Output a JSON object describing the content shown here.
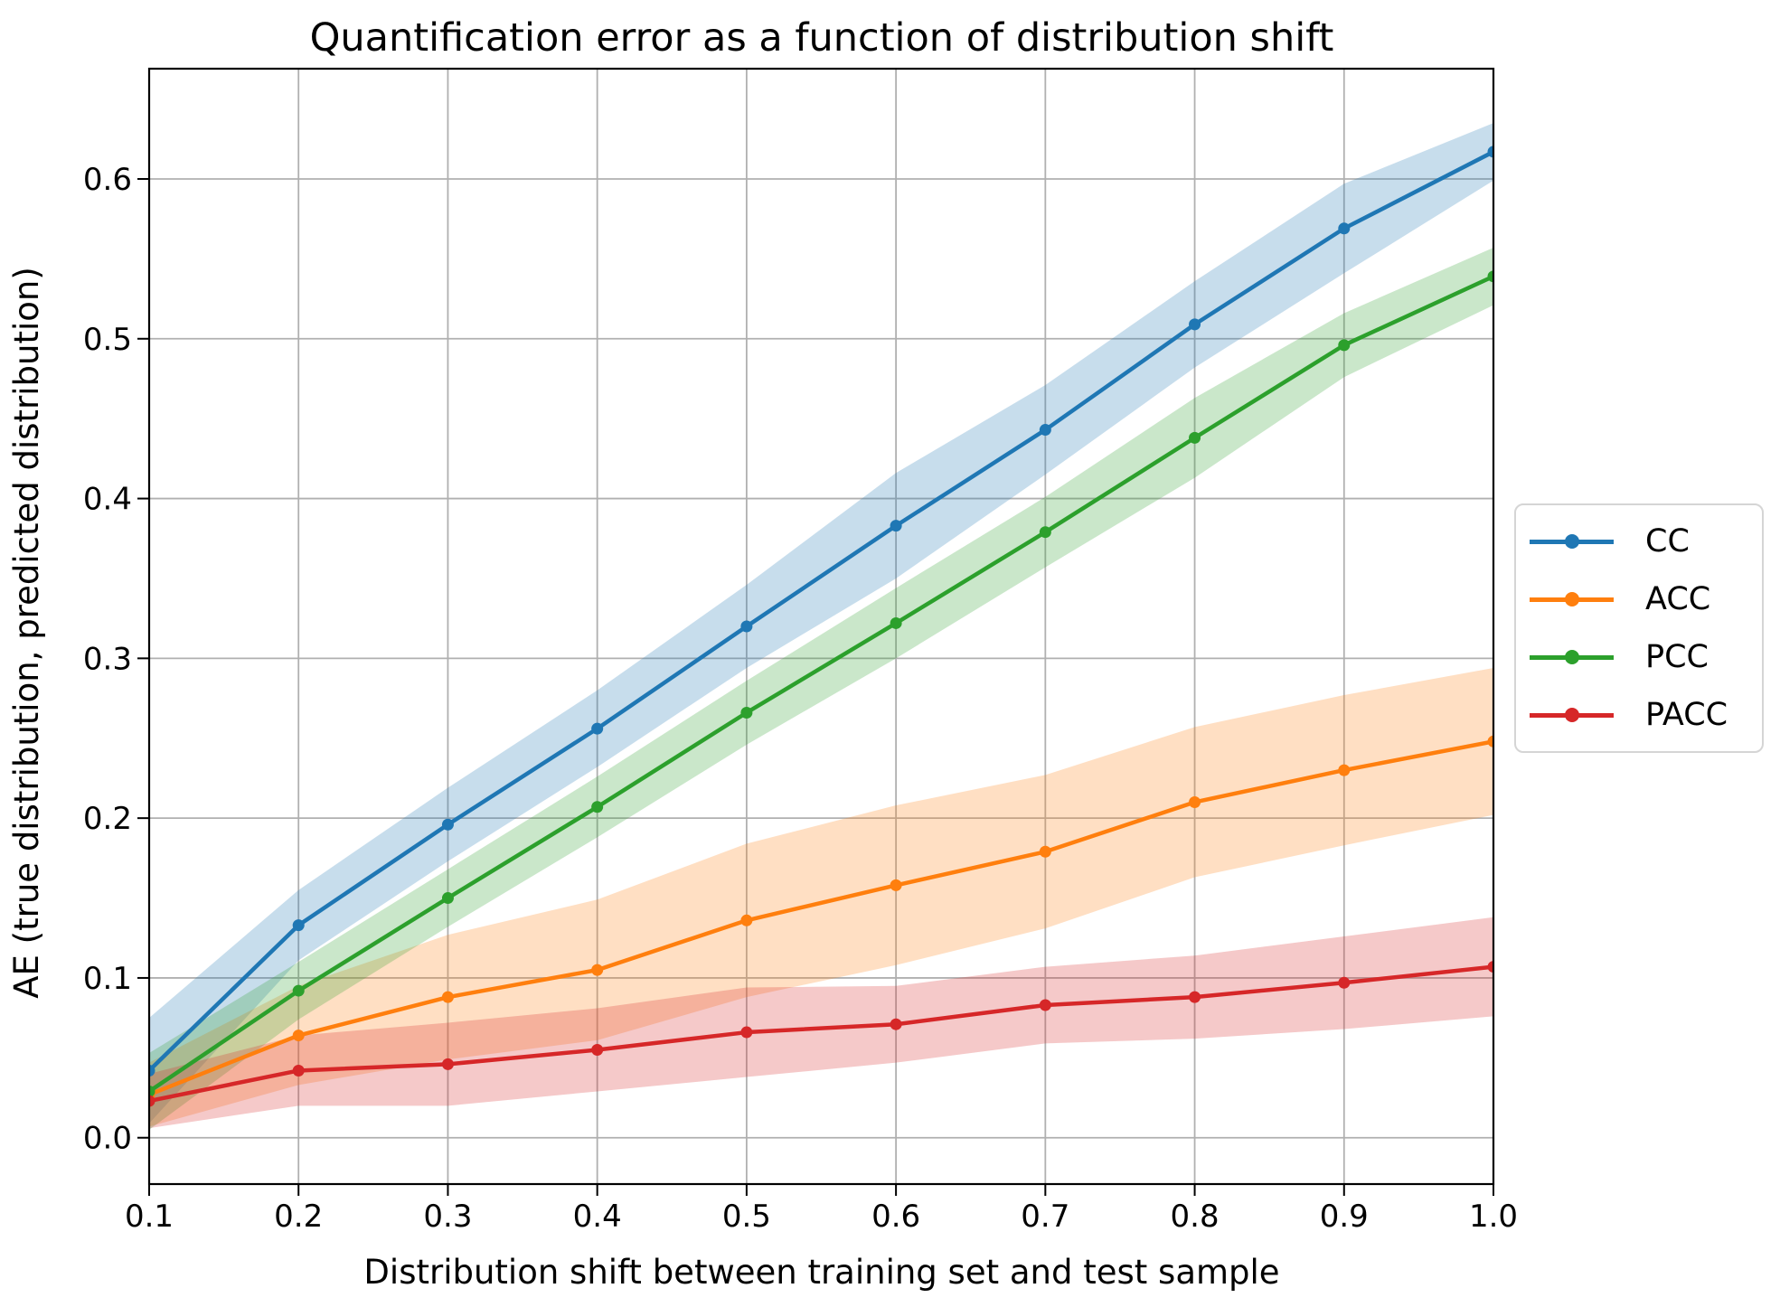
{
  "title": "Quantification error as a function of distribution shift",
  "xlabel": "Distribution shift between training set and test sample",
  "ylabel": "AE (true distribution, predicted distribution)",
  "colors": {
    "grid": "#b0b0b0",
    "spine": "#000000",
    "legend_border": "#d5d5d5",
    "background": "#ffffff"
  },
  "chart_data": {
    "type": "line",
    "title": "Quantification error as a function of distribution shift",
    "xlabel": "Distribution shift between training set and test sample",
    "ylabel": "AE (true distribution, predicted distribution)",
    "x": [
      0.1,
      0.2,
      0.3,
      0.4,
      0.5,
      0.6,
      0.7,
      0.8,
      0.9,
      1.0
    ],
    "series": [
      {
        "name": "CC",
        "color": "#1f77b4",
        "values": [
          0.042,
          0.133,
          0.196,
          0.256,
          0.32,
          0.383,
          0.443,
          0.509,
          0.569,
          0.617
        ],
        "band_halfwidth": [
          0.033,
          0.022,
          0.023,
          0.024,
          0.026,
          0.033,
          0.028,
          0.027,
          0.028,
          0.018
        ]
      },
      {
        "name": "ACC",
        "color": "#ff7f0e",
        "values": [
          0.027,
          0.064,
          0.088,
          0.105,
          0.136,
          0.158,
          0.179,
          0.21,
          0.23,
          0.248
        ],
        "band_halfwidth": [
          0.02,
          0.031,
          0.039,
          0.044,
          0.048,
          0.05,
          0.048,
          0.047,
          0.047,
          0.046
        ]
      },
      {
        "name": "PCC",
        "color": "#2ca02c",
        "values": [
          0.029,
          0.092,
          0.15,
          0.207,
          0.266,
          0.322,
          0.379,
          0.438,
          0.496,
          0.539
        ],
        "band_halfwidth": [
          0.024,
          0.018,
          0.018,
          0.019,
          0.02,
          0.022,
          0.022,
          0.025,
          0.02,
          0.018
        ]
      },
      {
        "name": "PACC",
        "color": "#d62728",
        "values": [
          0.023,
          0.042,
          0.046,
          0.055,
          0.066,
          0.071,
          0.083,
          0.088,
          0.097,
          0.107
        ],
        "band_halfwidth": [
          0.017,
          0.022,
          0.026,
          0.026,
          0.028,
          0.024,
          0.024,
          0.026,
          0.029,
          0.031
        ]
      }
    ],
    "xlim": [
      0.1,
      1.0
    ],
    "ylim": [
      -0.029,
      0.669
    ],
    "xticks": {
      "values": [
        0.1,
        0.2,
        0.3,
        0.4,
        0.5,
        0.6,
        0.7,
        0.8,
        0.9,
        1.0
      ],
      "labels": [
        "0.1",
        "0.2",
        "0.3",
        "0.4",
        "0.5",
        "0.6",
        "0.7",
        "0.8",
        "0.9",
        "1.0"
      ]
    },
    "yticks": {
      "values": [
        0.0,
        0.1,
        0.2,
        0.3,
        0.4,
        0.5,
        0.6
      ],
      "labels": [
        "0.0",
        "0.1",
        "0.2",
        "0.3",
        "0.4",
        "0.5",
        "0.6"
      ]
    },
    "grid": true,
    "band_alpha": 0.25,
    "legend_position": "right-outside",
    "legend_entries": [
      "CC",
      "ACC",
      "PCC",
      "PACC"
    ]
  }
}
